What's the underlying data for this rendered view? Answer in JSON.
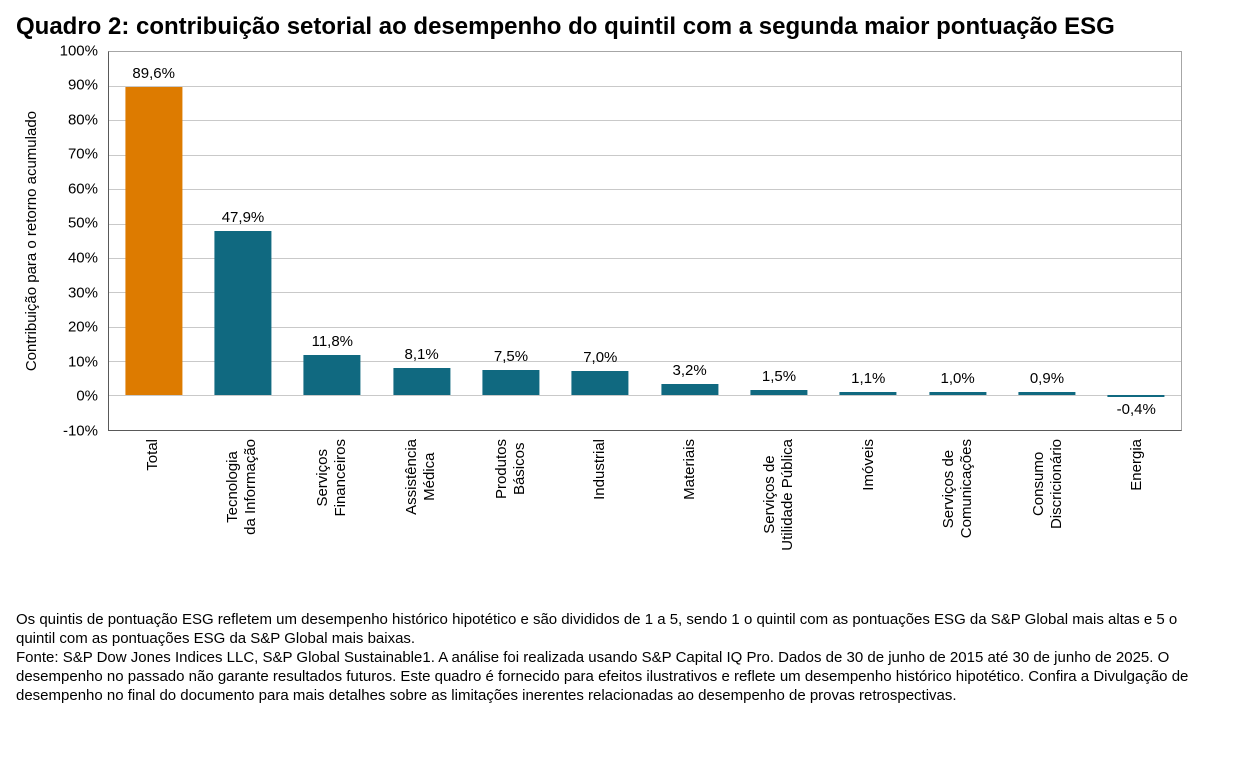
{
  "title": "Quadro 2: contribuição setorial ao desempenho do quintil com a segunda maior pontuação ESG",
  "chart_data": {
    "type": "bar",
    "title": "Quadro 2: contribuição setorial ao desempenho do quintil com a segunda maior pontuação ESG",
    "ylabel": "Contribuição para o retorno acumulado",
    "xlabel": "",
    "ylim": [
      -10,
      100
    ],
    "ytick_step": 10,
    "grid": true,
    "legend": false,
    "categories": [
      "Total",
      "Tecnologia\nda Informação",
      "Serviços\nFinanceiros",
      "Assistência\nMédica",
      "Produtos\nBásicos",
      "Industrial",
      "Materiais",
      "Serviços de\nUtilidade Pública",
      "Imóveis",
      "Serviços de\nComunicações",
      "Consumo\nDiscricionário",
      "Energia"
    ],
    "values": [
      89.6,
      47.9,
      11.8,
      8.1,
      7.5,
      7.0,
      3.2,
      1.5,
      1.1,
      1.0,
      0.9,
      -0.4
    ],
    "value_labels": [
      "89,6%",
      "47,9%",
      "11,8%",
      "8,1%",
      "7,5%",
      "7,0%",
      "3,2%",
      "1,5%",
      "1,1%",
      "1,0%",
      "0,9%",
      "-0,4%"
    ],
    "ytick_values": [
      100,
      90,
      80,
      70,
      60,
      50,
      40,
      30,
      20,
      10,
      0,
      -10
    ],
    "ytick_labels": [
      "100%",
      "90%",
      "80%",
      "70%",
      "60%",
      "50%",
      "40%",
      "30%",
      "20%",
      "10%",
      "0%",
      "-10%"
    ],
    "highlight_index": 0,
    "colors": {
      "highlight": "#DD7B00",
      "default": "#106980",
      "gridline": "#C9C9C9",
      "axis": "#595959",
      "border": "#A6A6A6"
    }
  },
  "footnotes": [
    "Os quintis de pontuação ESG refletem um desempenho histórico hipotético e são divididos de 1 a 5, sendo 1 o quintil com as pontuações ESG da S&P Global mais altas e 5 o quintil com as pontuações ESG da S&P Global mais baixas.",
    "Fonte: S&P Dow Jones Indices LLC, S&P Global Sustainable1. A análise foi realizada usando S&P Capital IQ Pro. Dados de 30 de junho de 2015 até 30 de junho de 2025. O desempenho no passado não garante resultados futuros. Este quadro é fornecido para efeitos ilustrativos e reflete um desempenho histórico hipotético. Confira a Divulgação de desempenho no final do documento para mais detalhes sobre as limitações inerentes relacionadas ao desempenho de provas retrospectivas."
  ]
}
